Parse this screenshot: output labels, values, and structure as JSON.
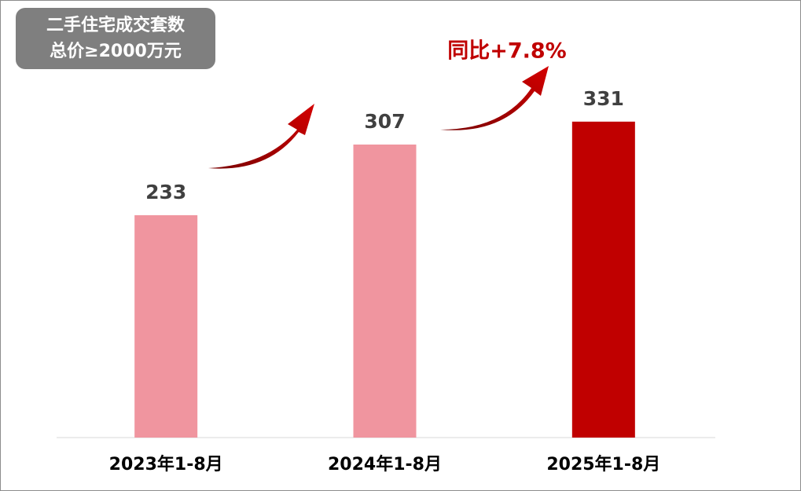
{
  "chart_data": {
    "type": "bar",
    "title": "二手住宅成交套数",
    "subtitle": "总价≥2000万元",
    "annotation": "同比+7.8%",
    "categories": [
      "2023年1-8月",
      "2024年1-8月",
      "2025年1-8月"
    ],
    "values": [
      233,
      307,
      331
    ],
    "colors": [
      "#f0959f",
      "#f0959f",
      "#c00000"
    ],
    "ylim": [
      0,
      400
    ]
  }
}
